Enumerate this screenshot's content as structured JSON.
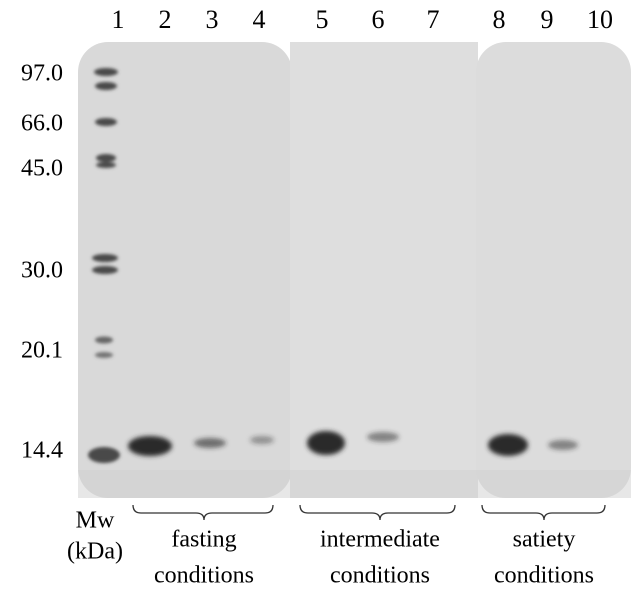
{
  "lanes": [
    "1",
    "2",
    "3",
    "4",
    "5",
    "6",
    "7",
    "8",
    "9",
    "10"
  ],
  "mw_markers": [
    "97.0",
    "66.0",
    "45.0",
    "30.0",
    "20.1",
    "14.4"
  ],
  "axis_label": {
    "line1": "Mw",
    "line2": "(kDa)"
  },
  "groups": [
    {
      "line1": "fasting",
      "line2": "conditions"
    },
    {
      "line1": "intermediate",
      "line2": "conditions"
    },
    {
      "line1": "satiety",
      "line2": "conditions"
    }
  ]
}
